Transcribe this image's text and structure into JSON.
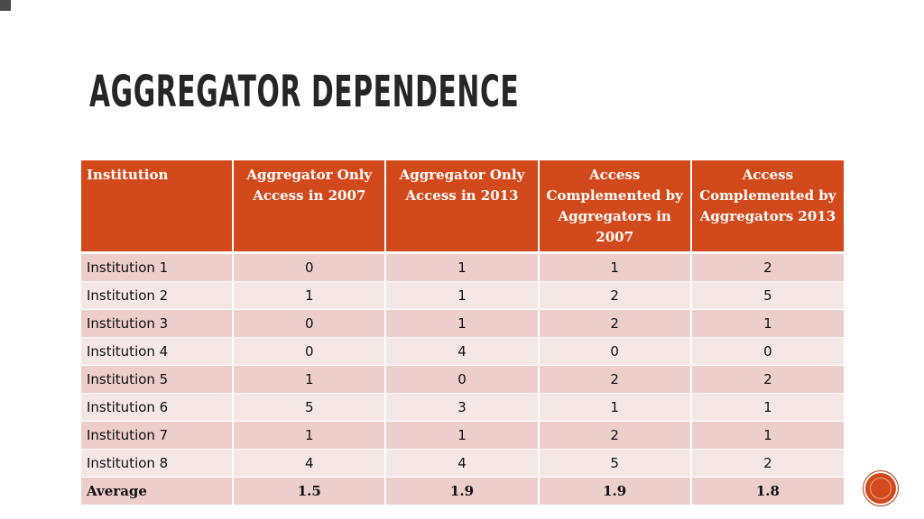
{
  "slide": {
    "title": "Aggregator Dependence"
  },
  "table": {
    "headers": [
      "Institution",
      "Aggregator Only Access in 2007",
      "Aggregator Only Access in 2013",
      "Access Complemented by Aggregators in 2007",
      "Access Complemented by Aggregators 2013"
    ],
    "rows": [
      [
        "Institution 1",
        "0",
        "1",
        "1",
        "2"
      ],
      [
        "Institution 2",
        "1",
        "1",
        "2",
        "5"
      ],
      [
        "Institution 3",
        "0",
        "1",
        "2",
        "1"
      ],
      [
        "Institution 4",
        "0",
        "4",
        "0",
        "0"
      ],
      [
        "Institution 5",
        "1",
        "0",
        "2",
        "2"
      ],
      [
        "Institution 6",
        "5",
        "3",
        "1",
        "1"
      ],
      [
        "Institution 7",
        "1",
        "1",
        "2",
        "1"
      ],
      [
        "Institution 8",
        "4",
        "4",
        "5",
        "2"
      ]
    ],
    "average": [
      "Average",
      "1.5",
      "1.9",
      "1.9",
      "1.8"
    ]
  },
  "colors": {
    "header_bg": "#d24a1c",
    "row_odd": "#eccecb",
    "row_even": "#f5e7e6",
    "title_text": "#262626"
  },
  "icons": {
    "nav_button": "circle-button-icon"
  }
}
